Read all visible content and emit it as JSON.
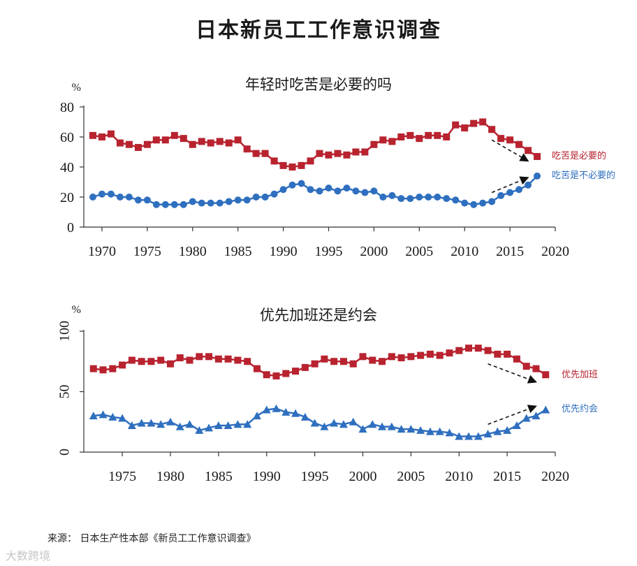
{
  "title": "日本新员工工作意识调查",
  "source": "来源： 日本生产性本部《新员工工作意识调查》",
  "watermark": "大数跨境",
  "colors": {
    "red": "#b8232f",
    "blue": "#2f6fbf",
    "axis": "#333333"
  },
  "chart_data": [
    {
      "type": "line",
      "title": "年轻时吃苦是必要的吗",
      "ylabel": "%",
      "ylim": [
        0,
        80
      ],
      "yticks": [
        0,
        20,
        40,
        60,
        80
      ],
      "xlim": [
        1968,
        2020
      ],
      "xticks": [
        1970,
        1975,
        1980,
        1985,
        1990,
        1995,
        2000,
        2005,
        2010,
        2015,
        2020
      ],
      "series": [
        {
          "name": "吃苦是必要的",
          "color": "#b8232f",
          "marker": "square",
          "x": [
            1969,
            1970,
            1971,
            1972,
            1973,
            1974,
            1975,
            1976,
            1977,
            1978,
            1979,
            1980,
            1981,
            1982,
            1983,
            1984,
            1985,
            1986,
            1987,
            1988,
            1989,
            1990,
            1991,
            1992,
            1993,
            1994,
            1995,
            1996,
            1997,
            1998,
            1999,
            2000,
            2001,
            2002,
            2003,
            2004,
            2005,
            2006,
            2007,
            2008,
            2009,
            2010,
            2011,
            2012,
            2013,
            2014,
            2015,
            2016,
            2017,
            2018
          ],
          "values": [
            61,
            60,
            62,
            56,
            55,
            53,
            55,
            58,
            58,
            61,
            59,
            55,
            57,
            56,
            57,
            56,
            58,
            52,
            49,
            49,
            44,
            41,
            40,
            41,
            44,
            49,
            48,
            49,
            48,
            50,
            50,
            55,
            58,
            57,
            60,
            61,
            59,
            61,
            61,
            60,
            68,
            66,
            69,
            70,
            65,
            59,
            58,
            55,
            51,
            47
          ]
        },
        {
          "name": "吃苦是不必要的",
          "color": "#2f6fbf",
          "marker": "circle",
          "x": [
            1969,
            1970,
            1971,
            1972,
            1973,
            1974,
            1975,
            1976,
            1977,
            1978,
            1979,
            1980,
            1981,
            1982,
            1983,
            1984,
            1985,
            1986,
            1987,
            1988,
            1989,
            1990,
            1991,
            1992,
            1993,
            1994,
            1995,
            1996,
            1997,
            1998,
            1999,
            2000,
            2001,
            2002,
            2003,
            2004,
            2005,
            2006,
            2007,
            2008,
            2009,
            2010,
            2011,
            2012,
            2013,
            2014,
            2015,
            2016,
            2017,
            2018
          ],
          "values": [
            20,
            22,
            22,
            20,
            20,
            18,
            18,
            15,
            15,
            15,
            15,
            17,
            16,
            16,
            16,
            17,
            18,
            18,
            20,
            20,
            22,
            25,
            28,
            29,
            25,
            24,
            26,
            24,
            26,
            24,
            23,
            24,
            20,
            21,
            19,
            19,
            20,
            20,
            20,
            19,
            18,
            16,
            15,
            16,
            17,
            21,
            23,
            25,
            28,
            34
          ]
        }
      ],
      "trend_arrows": [
        {
          "series": 0,
          "from": [
            2013,
            58
          ],
          "to": [
            2017,
            44
          ]
        },
        {
          "series": 1,
          "from": [
            2013,
            23
          ],
          "to": [
            2017,
            33
          ]
        }
      ]
    },
    {
      "type": "line",
      "title": "优先加班还是约会",
      "ylabel": "%",
      "ylim": [
        0,
        100
      ],
      "yticks": [
        0,
        50,
        100
      ],
      "xlim": [
        1971,
        2020
      ],
      "xticks": [
        1975,
        1980,
        1985,
        1990,
        1995,
        2000,
        2005,
        2010,
        2015,
        2020
      ],
      "series": [
        {
          "name": "优先加班",
          "color": "#b8232f",
          "marker": "square",
          "x": [
            1972,
            1973,
            1974,
            1975,
            1976,
            1977,
            1978,
            1979,
            1980,
            1981,
            1982,
            1983,
            1984,
            1985,
            1986,
            1987,
            1988,
            1989,
            1990,
            1991,
            1992,
            1993,
            1994,
            1995,
            1996,
            1997,
            1998,
            1999,
            2000,
            2001,
            2002,
            2003,
            2004,
            2005,
            2006,
            2007,
            2008,
            2009,
            2010,
            2011,
            2012,
            2013,
            2014,
            2015,
            2016,
            2017,
            2018,
            2019
          ],
          "values": [
            69,
            68,
            69,
            72,
            76,
            75,
            75,
            76,
            73,
            78,
            76,
            79,
            79,
            77,
            77,
            76,
            75,
            69,
            64,
            63,
            65,
            67,
            70,
            73,
            77,
            75,
            75,
            73,
            79,
            76,
            75,
            79,
            78,
            79,
            80,
            81,
            80,
            82,
            84,
            86,
            86,
            84,
            81,
            81,
            77,
            71,
            69,
            64
          ]
        },
        {
          "name": "优先约会",
          "color": "#2f6fbf",
          "marker": "triangle",
          "x": [
            1972,
            1973,
            1974,
            1975,
            1976,
            1977,
            1978,
            1979,
            1980,
            1981,
            1982,
            1983,
            1984,
            1985,
            1986,
            1987,
            1988,
            1989,
            1990,
            1991,
            1992,
            1993,
            1994,
            1995,
            1996,
            1997,
            1998,
            1999,
            2000,
            2001,
            2002,
            2003,
            2004,
            2005,
            2006,
            2007,
            2008,
            2009,
            2010,
            2011,
            2012,
            2013,
            2014,
            2015,
            2016,
            2017,
            2018,
            2019
          ],
          "values": [
            30,
            31,
            29,
            28,
            22,
            24,
            24,
            23,
            25,
            21,
            23,
            18,
            20,
            22,
            22,
            23,
            23,
            30,
            35,
            36,
            33,
            32,
            29,
            24,
            21,
            24,
            23,
            25,
            19,
            23,
            21,
            21,
            19,
            19,
            18,
            17,
            17,
            16,
            13,
            13,
            13,
            15,
            17,
            18,
            22,
            28,
            30,
            35
          ]
        }
      ],
      "trend_arrows": [
        {
          "series": 0,
          "from": [
            2013,
            73
          ],
          "to": [
            2018,
            58
          ]
        },
        {
          "series": 1,
          "from": [
            2013,
            23
          ],
          "to": [
            2018,
            38
          ]
        }
      ]
    }
  ]
}
